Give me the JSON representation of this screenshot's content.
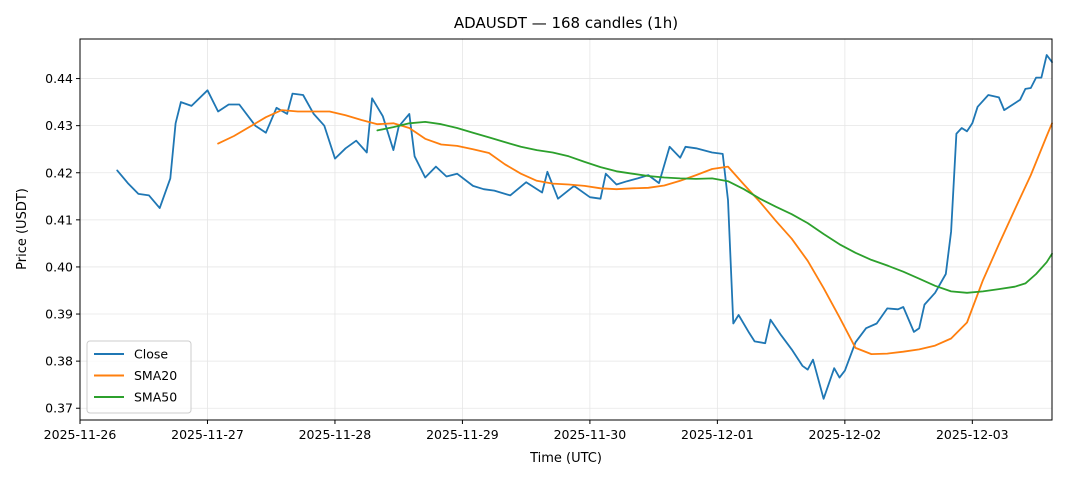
{
  "chart_data": {
    "type": "line",
    "title": "ADAUSDT — 168 candles (1h)",
    "xlabel": "Time (UTC)",
    "ylabel": "Price (USDT)",
    "x_range": [
      "2025-11-26 00:00",
      "2025-12-03 15:00"
    ],
    "ylim": [
      0.3675,
      0.4484
    ],
    "grid": true,
    "legend_position": "lower-left",
    "x_ticks": [
      "2025-11-26",
      "2025-11-27",
      "2025-11-28",
      "2025-11-29",
      "2025-11-30",
      "2025-12-01",
      "2025-12-02",
      "2025-12-03"
    ],
    "y_ticks": [
      "0.37",
      "0.38",
      "0.39",
      "0.40",
      "0.41",
      "0.42",
      "0.43",
      "0.44"
    ],
    "series": [
      {
        "name": "Close",
        "color": "#1f77b4",
        "points": [
          [
            "2025-11-26 07:00",
            0.4205
          ],
          [
            "2025-11-26 09:00",
            0.4178
          ],
          [
            "2025-11-26 11:00",
            0.4155
          ],
          [
            "2025-11-26 13:00",
            0.4152
          ],
          [
            "2025-11-26 15:00",
            0.4125
          ],
          [
            "2025-11-26 17:00",
            0.4188
          ],
          [
            "2025-11-26 18:00",
            0.4305
          ],
          [
            "2025-11-26 19:00",
            0.435
          ],
          [
            "2025-11-26 21:00",
            0.4342
          ],
          [
            "2025-11-27 00:00",
            0.4375
          ],
          [
            "2025-11-27 02:00",
            0.433
          ],
          [
            "2025-11-27 04:00",
            0.4345
          ],
          [
            "2025-11-27 06:00",
            0.4345
          ],
          [
            "2025-11-27 09:00",
            0.43
          ],
          [
            "2025-11-27 11:00",
            0.4285
          ],
          [
            "2025-11-27 13:00",
            0.4338
          ],
          [
            "2025-11-27 15:00",
            0.4325
          ],
          [
            "2025-11-27 16:00",
            0.4368
          ],
          [
            "2025-11-27 18:00",
            0.4365
          ],
          [
            "2025-11-27 20:00",
            0.4325
          ],
          [
            "2025-11-27 22:00",
            0.43
          ],
          [
            "2025-11-28 00:00",
            0.423
          ],
          [
            "2025-11-28 02:00",
            0.4252
          ],
          [
            "2025-11-28 04:00",
            0.4268
          ],
          [
            "2025-11-28 06:00",
            0.4243
          ],
          [
            "2025-11-28 07:00",
            0.4358
          ],
          [
            "2025-11-28 09:00",
            0.432
          ],
          [
            "2025-11-28 11:00",
            0.4248
          ],
          [
            "2025-11-28 12:00",
            0.4298
          ],
          [
            "2025-11-28 14:00",
            0.4325
          ],
          [
            "2025-11-28 15:00",
            0.4235
          ],
          [
            "2025-11-28 17:00",
            0.419
          ],
          [
            "2025-11-28 19:00",
            0.4213
          ],
          [
            "2025-11-28 21:00",
            0.4192
          ],
          [
            "2025-11-28 23:00",
            0.4198
          ],
          [
            "2025-11-29 02:00",
            0.4172
          ],
          [
            "2025-11-29 04:00",
            0.4165
          ],
          [
            "2025-11-29 06:00",
            0.4162
          ],
          [
            "2025-11-29 09:00",
            0.4152
          ],
          [
            "2025-11-29 12:00",
            0.418
          ],
          [
            "2025-11-29 15:00",
            0.4158
          ],
          [
            "2025-11-29 16:00",
            0.4202
          ],
          [
            "2025-11-29 18:00",
            0.4145
          ],
          [
            "2025-11-29 21:00",
            0.4172
          ],
          [
            "2025-11-30 00:00",
            0.4148
          ],
          [
            "2025-11-30 02:00",
            0.4145
          ],
          [
            "2025-11-30 03:00",
            0.4198
          ],
          [
            "2025-11-30 05:00",
            0.4175
          ],
          [
            "2025-11-30 07:00",
            0.4182
          ],
          [
            "2025-11-30 09:00",
            0.4188
          ],
          [
            "2025-11-30 11:00",
            0.4195
          ],
          [
            "2025-11-30 13:00",
            0.4178
          ],
          [
            "2025-11-30 15:00",
            0.4255
          ],
          [
            "2025-11-30 17:00",
            0.4232
          ],
          [
            "2025-11-30 18:00",
            0.4255
          ],
          [
            "2025-11-30 20:00",
            0.4252
          ],
          [
            "2025-11-30 23:00",
            0.4243
          ],
          [
            "2025-12-01 01:00",
            0.424
          ],
          [
            "2025-12-01 02:00",
            0.4142
          ],
          [
            "2025-12-01 03:00",
            0.388
          ],
          [
            "2025-12-01 04:00",
            0.3898
          ],
          [
            "2025-12-01 06:00",
            0.386
          ],
          [
            "2025-12-01 07:00",
            0.3842
          ],
          [
            "2025-12-01 09:00",
            0.3838
          ],
          [
            "2025-12-01 10:00",
            0.3888
          ],
          [
            "2025-12-01 12:00",
            0.3855
          ],
          [
            "2025-12-01 14:00",
            0.3825
          ],
          [
            "2025-12-01 16:00",
            0.379
          ],
          [
            "2025-12-01 17:00",
            0.3782
          ],
          [
            "2025-12-01 18:00",
            0.3803
          ],
          [
            "2025-12-01 20:00",
            0.372
          ],
          [
            "2025-12-01 22:00",
            0.3785
          ],
          [
            "2025-12-01 23:00",
            0.3765
          ],
          [
            "2025-12-02 00:00",
            0.378
          ],
          [
            "2025-12-02 02:00",
            0.384
          ],
          [
            "2025-12-02 04:00",
            0.387
          ],
          [
            "2025-12-02 06:00",
            0.388
          ],
          [
            "2025-12-02 08:00",
            0.3912
          ],
          [
            "2025-12-02 10:00",
            0.391
          ],
          [
            "2025-12-02 11:00",
            0.3915
          ],
          [
            "2025-12-02 13:00",
            0.3862
          ],
          [
            "2025-12-02 14:00",
            0.387
          ],
          [
            "2025-12-02 15:00",
            0.392
          ],
          [
            "2025-12-02 17:00",
            0.3945
          ],
          [
            "2025-12-02 19:00",
            0.3985
          ],
          [
            "2025-12-02 20:00",
            0.4075
          ],
          [
            "2025-12-02 21:00",
            0.4283
          ],
          [
            "2025-12-02 22:00",
            0.4295
          ],
          [
            "2025-12-02 23:00",
            0.4288
          ],
          [
            "2025-12-03 00:00",
            0.4305
          ],
          [
            "2025-12-03 01:00",
            0.434
          ],
          [
            "2025-12-03 03:00",
            0.4365
          ],
          [
            "2025-12-03 05:00",
            0.436
          ],
          [
            "2025-12-03 06:00",
            0.4333
          ],
          [
            "2025-12-03 09:00",
            0.4355
          ],
          [
            "2025-12-03 10:00",
            0.4378
          ],
          [
            "2025-12-03 11:00",
            0.438
          ],
          [
            "2025-12-03 12:00",
            0.4402
          ],
          [
            "2025-12-03 13:00",
            0.4402
          ],
          [
            "2025-12-03 14:00",
            0.445
          ],
          [
            "2025-12-03 15:00",
            0.4435
          ]
        ]
      },
      {
        "name": "SMA20",
        "color": "#ff7f0e",
        "points": [
          [
            "2025-11-27 02:00",
            0.4262
          ],
          [
            "2025-11-27 05:00",
            0.4278
          ],
          [
            "2025-11-27 08:00",
            0.4298
          ],
          [
            "2025-11-27 11:00",
            0.4318
          ],
          [
            "2025-11-27 14:00",
            0.4333
          ],
          [
            "2025-11-27 17:00",
            0.433
          ],
          [
            "2025-11-27 20:00",
            0.433
          ],
          [
            "2025-11-27 23:00",
            0.433
          ],
          [
            "2025-11-28 02:00",
            0.4322
          ],
          [
            "2025-11-28 05:00",
            0.4312
          ],
          [
            "2025-11-28 08:00",
            0.4303
          ],
          [
            "2025-11-28 11:00",
            0.4305
          ],
          [
            "2025-11-28 14:00",
            0.4295
          ],
          [
            "2025-11-28 17:00",
            0.4272
          ],
          [
            "2025-11-28 20:00",
            0.426
          ],
          [
            "2025-11-28 23:00",
            0.4257
          ],
          [
            "2025-11-29 02:00",
            0.425
          ],
          [
            "2025-11-29 05:00",
            0.4242
          ],
          [
            "2025-11-29 08:00",
            0.4218
          ],
          [
            "2025-11-29 11:00",
            0.4198
          ],
          [
            "2025-11-29 14:00",
            0.4183
          ],
          [
            "2025-11-29 17:00",
            0.4177
          ],
          [
            "2025-11-29 20:00",
            0.4175
          ],
          [
            "2025-11-29 23:00",
            0.4172
          ],
          [
            "2025-11-30 02:00",
            0.4167
          ],
          [
            "2025-11-30 05:00",
            0.4165
          ],
          [
            "2025-11-30 08:00",
            0.4167
          ],
          [
            "2025-11-30 11:00",
            0.4168
          ],
          [
            "2025-11-30 14:00",
            0.4173
          ],
          [
            "2025-11-30 17:00",
            0.4183
          ],
          [
            "2025-11-30 20:00",
            0.4195
          ],
          [
            "2025-11-30 23:00",
            0.4208
          ],
          [
            "2025-12-01 02:00",
            0.4213
          ],
          [
            "2025-12-01 05:00",
            0.4175
          ],
          [
            "2025-12-01 08:00",
            0.4138
          ],
          [
            "2025-12-01 11:00",
            0.4098
          ],
          [
            "2025-12-01 14:00",
            0.406
          ],
          [
            "2025-12-01 17:00",
            0.4013
          ],
          [
            "2025-12-01 20:00",
            0.3955
          ],
          [
            "2025-12-01 23:00",
            0.3893
          ],
          [
            "2025-12-02 02:00",
            0.3828
          ],
          [
            "2025-12-02 05:00",
            0.3815
          ],
          [
            "2025-12-02 08:00",
            0.3816
          ],
          [
            "2025-12-02 11:00",
            0.382
          ],
          [
            "2025-12-02 14:00",
            0.3825
          ],
          [
            "2025-12-02 17:00",
            0.3833
          ],
          [
            "2025-12-02 20:00",
            0.3848
          ],
          [
            "2025-12-02 23:00",
            0.3882
          ],
          [
            "2025-12-03 02:00",
            0.3972
          ],
          [
            "2025-12-03 05:00",
            0.4048
          ],
          [
            "2025-12-03 08:00",
            0.4122
          ],
          [
            "2025-12-03 11:00",
            0.4195
          ],
          [
            "2025-12-03 14:00",
            0.4278
          ],
          [
            "2025-12-03 15:00",
            0.4305
          ]
        ]
      },
      {
        "name": "SMA50",
        "color": "#2ca02c",
        "points": [
          [
            "2025-11-28 08:00",
            0.429
          ],
          [
            "2025-11-28 11:00",
            0.4297
          ],
          [
            "2025-11-28 14:00",
            0.4305
          ],
          [
            "2025-11-28 17:00",
            0.4308
          ],
          [
            "2025-11-28 20:00",
            0.4303
          ],
          [
            "2025-11-28 23:00",
            0.4295
          ],
          [
            "2025-11-29 02:00",
            0.4285
          ],
          [
            "2025-11-29 05:00",
            0.4275
          ],
          [
            "2025-11-29 08:00",
            0.4265
          ],
          [
            "2025-11-29 11:00",
            0.4255
          ],
          [
            "2025-11-29 14:00",
            0.4248
          ],
          [
            "2025-11-29 17:00",
            0.4243
          ],
          [
            "2025-11-29 20:00",
            0.4235
          ],
          [
            "2025-11-29 23:00",
            0.4223
          ],
          [
            "2025-11-30 02:00",
            0.4212
          ],
          [
            "2025-11-30 05:00",
            0.4203
          ],
          [
            "2025-11-30 08:00",
            0.4198
          ],
          [
            "2025-11-30 11:00",
            0.4193
          ],
          [
            "2025-11-30 14:00",
            0.419
          ],
          [
            "2025-11-30 17:00",
            0.4188
          ],
          [
            "2025-11-30 20:00",
            0.4187
          ],
          [
            "2025-11-30 23:00",
            0.4188
          ],
          [
            "2025-12-01 02:00",
            0.4182
          ],
          [
            "2025-12-01 05:00",
            0.4165
          ],
          [
            "2025-12-01 08:00",
            0.4145
          ],
          [
            "2025-12-01 11:00",
            0.4128
          ],
          [
            "2025-12-01 14:00",
            0.4112
          ],
          [
            "2025-12-01 17:00",
            0.4093
          ],
          [
            "2025-12-01 20:00",
            0.407
          ],
          [
            "2025-12-01 23:00",
            0.4048
          ],
          [
            "2025-12-02 02:00",
            0.403
          ],
          [
            "2025-12-02 05:00",
            0.4015
          ],
          [
            "2025-12-02 08:00",
            0.4003
          ],
          [
            "2025-12-02 11:00",
            0.399
          ],
          [
            "2025-12-02 14:00",
            0.3975
          ],
          [
            "2025-12-02 17:00",
            0.396
          ],
          [
            "2025-12-02 20:00",
            0.3948
          ],
          [
            "2025-12-02 23:00",
            0.3945
          ],
          [
            "2025-12-03 02:00",
            0.3948
          ],
          [
            "2025-12-03 05:00",
            0.3953
          ],
          [
            "2025-12-03 08:00",
            0.3958
          ],
          [
            "2025-12-03 10:00",
            0.3965
          ],
          [
            "2025-12-03 12:00",
            0.3985
          ],
          [
            "2025-12-03 14:00",
            0.401
          ],
          [
            "2025-12-03 15:00",
            0.4028
          ]
        ]
      }
    ]
  }
}
